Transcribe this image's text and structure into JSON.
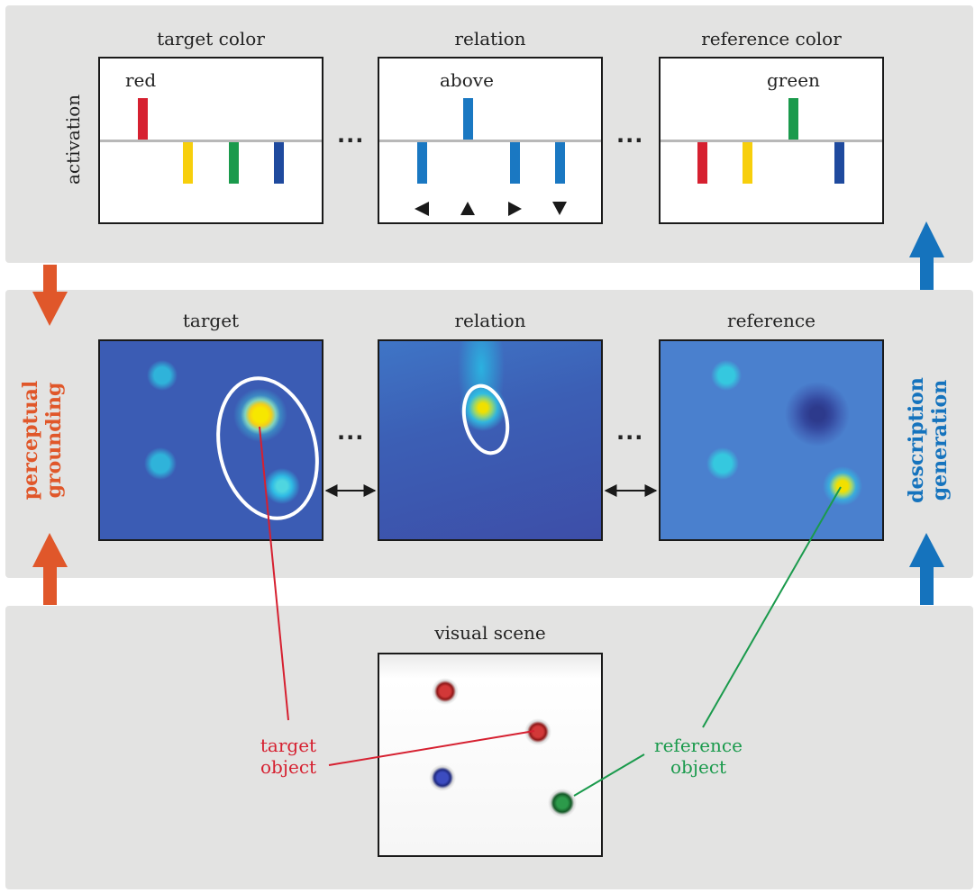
{
  "top_panels": {
    "target_color": {
      "title": "target color",
      "active_label": "red"
    },
    "relation": {
      "title": "relation",
      "active_label": "above"
    },
    "reference_color": {
      "title": "reference color",
      "active_label": "green"
    },
    "axis_label": "activation",
    "ellipsis": "..."
  },
  "middle_panels": {
    "target": "target",
    "relation": "relation",
    "reference": "reference",
    "ellipsis": "..."
  },
  "side_labels": {
    "left_line1": "perceptual",
    "left_line2": "grounding",
    "right_line1": "description",
    "right_line2": "generation"
  },
  "scene": {
    "title": "visual scene",
    "target_callout_line1": "target",
    "target_callout_line2": "object",
    "reference_callout_line1": "reference",
    "reference_callout_line2": "object"
  },
  "colors": {
    "band": "#e3e3e2",
    "red": "#d62030",
    "yellow": "#f7cf0c",
    "green": "#1a9a4c",
    "dark_blue": "#1f4a9e",
    "relation_blue": "#1a78c2",
    "orange_arrow": "#e0572a",
    "blue_arrow": "#1573bd",
    "map_bg": "#3b5cb4"
  }
}
